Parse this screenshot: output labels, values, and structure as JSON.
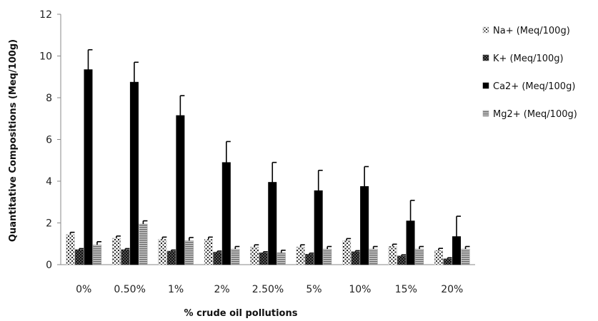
{
  "chart_data": {
    "type": "bar",
    "title": "",
    "xlabel": "% crude oil pollutions",
    "ylabel": "Quantitative Compositions (Meq/100g)",
    "ylim": [
      0,
      12
    ],
    "yticks": [
      0,
      2,
      4,
      6,
      8,
      10,
      12
    ],
    "grid": false,
    "legend_position": "right",
    "categories": [
      "0%",
      "0.50%",
      "1%",
      "2%",
      "2.50%",
      "5%",
      "10%",
      "15%",
      "20%"
    ],
    "series": [
      {
        "name": "Na+ (Meq/100g)",
        "pattern": "dots",
        "values": [
          1.45,
          1.27,
          1.22,
          1.22,
          0.85,
          0.85,
          1.15,
          0.88,
          0.68
        ],
        "errors": [
          0.1,
          0.1,
          0.1,
          0.1,
          0.1,
          0.1,
          0.1,
          0.1,
          0.1
        ]
      },
      {
        "name": "K+ (Meq/100g)",
        "pattern": "check",
        "values": [
          0.72,
          0.72,
          0.65,
          0.6,
          0.57,
          0.5,
          0.62,
          0.42,
          0.28
        ],
        "errors": [
          0.05,
          0.05,
          0.05,
          0.05,
          0.05,
          0.05,
          0.05,
          0.05,
          0.05
        ]
      },
      {
        "name": "Ca2+ (Meq/100g)",
        "pattern": "solid",
        "values": [
          9.35,
          8.75,
          7.15,
          4.9,
          3.95,
          3.55,
          3.75,
          2.1,
          1.35
        ],
        "errors": [
          0.95,
          0.95,
          0.95,
          1.0,
          0.95,
          0.97,
          0.95,
          0.98,
          0.97
        ]
      },
      {
        "name": "Mg2+ (Meq/100g)",
        "pattern": "hstripes",
        "values": [
          0.95,
          1.95,
          1.15,
          0.75,
          0.57,
          0.75,
          0.75,
          0.75,
          0.75
        ],
        "errors": [
          0.15,
          0.15,
          0.15,
          0.12,
          0.12,
          0.12,
          0.12,
          0.12,
          0.12
        ]
      }
    ]
  }
}
